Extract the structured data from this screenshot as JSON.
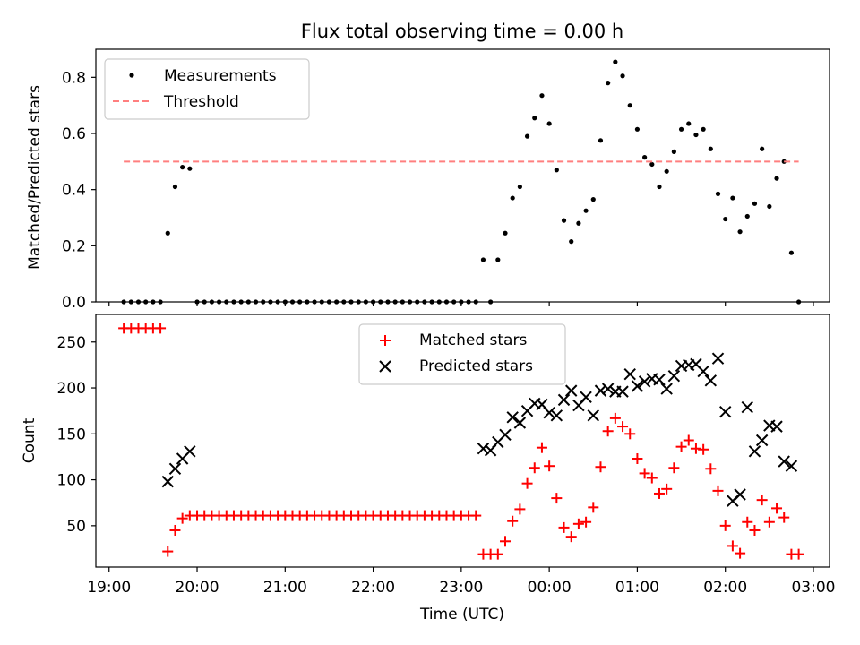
{
  "chart_data": [
    {
      "type": "scatter",
      "title": "Flux total observing time = 0.00 h",
      "xlabel": "",
      "ylabel": "Matched/Predicted stars",
      "xlim": [
        "18:51",
        "03:11"
      ],
      "ylim": [
        0,
        0.9
      ],
      "x_ticks": [
        "19:00",
        "20:00",
        "21:00",
        "22:00",
        "23:00",
        "00:00",
        "01:00",
        "02:00",
        "03:00"
      ],
      "y_ticks": [
        "0.0",
        "0.2",
        "0.4",
        "0.6",
        "0.8"
      ],
      "legend_position": "top-left",
      "grid": false,
      "series": [
        {
          "name": "Measurements",
          "marker": "dot",
          "color": "#000000",
          "points": [
            [
              "19:10",
              0
            ],
            [
              "19:15",
              0
            ],
            [
              "19:20",
              0
            ],
            [
              "19:25",
              0
            ],
            [
              "19:30",
              0
            ],
            [
              "19:35",
              0
            ],
            [
              "19:40",
              0.245
            ],
            [
              "19:45",
              0.41
            ],
            [
              "19:50",
              0.48
            ],
            [
              "19:55",
              0.475
            ],
            [
              "20:00",
              0
            ],
            [
              "20:05",
              0
            ],
            [
              "20:10",
              0
            ],
            [
              "20:15",
              0
            ],
            [
              "20:20",
              0
            ],
            [
              "20:25",
              0
            ],
            [
              "20:30",
              0
            ],
            [
              "20:35",
              0
            ],
            [
              "20:40",
              0
            ],
            [
              "20:45",
              0
            ],
            [
              "20:50",
              0
            ],
            [
              "20:55",
              0
            ],
            [
              "21:00",
              0
            ],
            [
              "21:05",
              0
            ],
            [
              "21:10",
              0
            ],
            [
              "21:15",
              0
            ],
            [
              "21:20",
              0
            ],
            [
              "21:25",
              0
            ],
            [
              "21:30",
              0
            ],
            [
              "21:35",
              0
            ],
            [
              "21:40",
              0
            ],
            [
              "21:45",
              0
            ],
            [
              "21:50",
              0
            ],
            [
              "21:55",
              0
            ],
            [
              "22:00",
              0
            ],
            [
              "22:05",
              0
            ],
            [
              "22:10",
              0
            ],
            [
              "22:15",
              0
            ],
            [
              "22:20",
              0
            ],
            [
              "22:25",
              0
            ],
            [
              "22:30",
              0
            ],
            [
              "22:35",
              0
            ],
            [
              "22:40",
              0
            ],
            [
              "22:45",
              0
            ],
            [
              "22:50",
              0
            ],
            [
              "22:55",
              0
            ],
            [
              "23:00",
              0
            ],
            [
              "23:05",
              0
            ],
            [
              "23:10",
              0
            ],
            [
              "23:15",
              0.15
            ],
            [
              "23:20",
              0
            ],
            [
              "23:25",
              0.15
            ],
            [
              "23:30",
              0.245
            ],
            [
              "23:35",
              0.37
            ],
            [
              "23:40",
              0.41
            ],
            [
              "23:45",
              0.59
            ],
            [
              "23:50",
              0.655
            ],
            [
              "23:55",
              0.735
            ],
            [
              "00:00",
              0.635
            ],
            [
              "00:05",
              0.47
            ],
            [
              "00:10",
              0.29
            ],
            [
              "00:15",
              0.215
            ],
            [
              "00:20",
              0.28
            ],
            [
              "00:25",
              0.325
            ],
            [
              "00:30",
              0.365
            ],
            [
              "00:35",
              0.575
            ],
            [
              "00:40",
              0.78
            ],
            [
              "00:45",
              0.855
            ],
            [
              "00:50",
              0.805
            ],
            [
              "00:55",
              0.7
            ],
            [
              "01:00",
              0.615
            ],
            [
              "01:05",
              0.515
            ],
            [
              "01:10",
              0.49
            ],
            [
              "01:15",
              0.41
            ],
            [
              "01:20",
              0.465
            ],
            [
              "01:25",
              0.535
            ],
            [
              "01:30",
              0.615
            ],
            [
              "01:35",
              0.635
            ],
            [
              "01:40",
              0.595
            ],
            [
              "01:45",
              0.615
            ],
            [
              "01:50",
              0.545
            ],
            [
              "01:55",
              0.385
            ],
            [
              "02:00",
              0.295
            ],
            [
              "02:05",
              0.37
            ],
            [
              "02:10",
              0.25
            ],
            [
              "02:15",
              0.305
            ],
            [
              "02:20",
              0.35
            ],
            [
              "02:25",
              0.545
            ],
            [
              "02:30",
              0.34
            ],
            [
              "02:35",
              0.44
            ],
            [
              "02:40",
              0.5
            ],
            [
              "02:45",
              0.175
            ],
            [
              "02:50",
              0
            ]
          ]
        },
        {
          "name": "Threshold",
          "style": "dashed-line",
          "color": "#ff7f7f",
          "x": [
            "19:10",
            "02:50"
          ],
          "y": [
            0.5,
            0.5
          ]
        }
      ]
    },
    {
      "type": "scatter",
      "title": "",
      "xlabel": "Time (UTC)",
      "ylabel": "Count",
      "xlim": [
        "18:51",
        "03:11"
      ],
      "ylim": [
        5,
        280
      ],
      "x_ticks": [
        "19:00",
        "20:00",
        "21:00",
        "22:00",
        "23:00",
        "00:00",
        "01:00",
        "02:00",
        "03:00"
      ],
      "y_ticks": [
        "50",
        "100",
        "150",
        "200",
        "250"
      ],
      "legend_position": "upper center",
      "grid": false,
      "series": [
        {
          "name": "Matched stars",
          "marker": "plus",
          "color": "#ff0000",
          "points": [
            [
              "19:10",
              265
            ],
            [
              "19:15",
              265
            ],
            [
              "19:20",
              265
            ],
            [
              "19:25",
              265
            ],
            [
              "19:30",
              265
            ],
            [
              "19:35",
              265
            ],
            [
              "19:40",
              22
            ],
            [
              "19:45",
              45
            ],
            [
              "19:50",
              58
            ],
            [
              "19:55",
              61
            ],
            [
              "20:00",
              61
            ],
            [
              "20:05",
              61
            ],
            [
              "20:10",
              61
            ],
            [
              "20:15",
              61
            ],
            [
              "20:20",
              61
            ],
            [
              "20:25",
              61
            ],
            [
              "20:30",
              61
            ],
            [
              "20:35",
              61
            ],
            [
              "20:40",
              61
            ],
            [
              "20:45",
              61
            ],
            [
              "20:50",
              61
            ],
            [
              "20:55",
              61
            ],
            [
              "21:00",
              61
            ],
            [
              "21:05",
              61
            ],
            [
              "21:10",
              61
            ],
            [
              "21:15",
              61
            ],
            [
              "21:20",
              61
            ],
            [
              "21:25",
              61
            ],
            [
              "21:30",
              61
            ],
            [
              "21:35",
              61
            ],
            [
              "21:40",
              61
            ],
            [
              "21:45",
              61
            ],
            [
              "21:50",
              61
            ],
            [
              "21:55",
              61
            ],
            [
              "22:00",
              61
            ],
            [
              "22:05",
              61
            ],
            [
              "22:10",
              61
            ],
            [
              "22:15",
              61
            ],
            [
              "22:20",
              61
            ],
            [
              "22:25",
              61
            ],
            [
              "22:30",
              61
            ],
            [
              "22:35",
              61
            ],
            [
              "22:40",
              61
            ],
            [
              "22:45",
              61
            ],
            [
              "22:50",
              61
            ],
            [
              "22:55",
              61
            ],
            [
              "23:00",
              61
            ],
            [
              "23:05",
              61
            ],
            [
              "23:10",
              61
            ],
            [
              "23:15",
              19
            ],
            [
              "23:20",
              19
            ],
            [
              "23:25",
              19
            ],
            [
              "23:30",
              33
            ],
            [
              "23:35",
              55
            ],
            [
              "23:40",
              68
            ],
            [
              "23:45",
              96
            ],
            [
              "23:50",
              113
            ],
            [
              "23:55",
              135
            ],
            [
              "00:00",
              115
            ],
            [
              "00:05",
              80
            ],
            [
              "00:10",
              48
            ],
            [
              "00:15",
              38
            ],
            [
              "00:20",
              52
            ],
            [
              "00:25",
              54
            ],
            [
              "00:30",
              70
            ],
            [
              "00:35",
              114
            ],
            [
              "00:40",
              153
            ],
            [
              "00:45",
              167
            ],
            [
              "00:50",
              158
            ],
            [
              "00:55",
              150
            ],
            [
              "01:00",
              123
            ],
            [
              "01:05",
              107
            ],
            [
              "01:10",
              102
            ],
            [
              "01:15",
              85
            ],
            [
              "01:20",
              90
            ],
            [
              "01:25",
              113
            ],
            [
              "01:30",
              136
            ],
            [
              "01:35",
              143
            ],
            [
              "01:40",
              134
            ],
            [
              "01:45",
              133
            ],
            [
              "01:50",
              112
            ],
            [
              "01:55",
              88
            ],
            [
              "02:00",
              50
            ],
            [
              "02:05",
              28
            ],
            [
              "02:10",
              20
            ],
            [
              "02:15",
              54
            ],
            [
              "02:20",
              45
            ],
            [
              "02:25",
              78
            ],
            [
              "02:30",
              54
            ],
            [
              "02:35",
              69
            ],
            [
              "02:40",
              59
            ],
            [
              "02:45",
              19
            ],
            [
              "02:50",
              19
            ]
          ]
        },
        {
          "name": "Predicted stars",
          "marker": "x",
          "color": "#000000",
          "points": [
            [
              "19:40",
              98
            ],
            [
              "19:45",
              112
            ],
            [
              "19:50",
              123
            ],
            [
              "19:55",
              131
            ],
            [
              "23:15",
              134
            ],
            [
              "23:20",
              132
            ],
            [
              "23:25",
              141
            ],
            [
              "23:30",
              149
            ],
            [
              "23:35",
              168
            ],
            [
              "23:40",
              162
            ],
            [
              "23:45",
              175
            ],
            [
              "23:50",
              183
            ],
            [
              "23:55",
              182
            ],
            [
              "00:00",
              173
            ],
            [
              "00:05",
              170
            ],
            [
              "00:10",
              187
            ],
            [
              "00:15",
              197
            ],
            [
              "00:20",
              181
            ],
            [
              "00:25",
              190
            ],
            [
              "00:30",
              170
            ],
            [
              "00:35",
              197
            ],
            [
              "00:40",
              199
            ],
            [
              "00:45",
              196
            ],
            [
              "00:50",
              196
            ],
            [
              "00:55",
              215
            ],
            [
              "01:00",
              202
            ],
            [
              "01:05",
              207
            ],
            [
              "01:10",
              210
            ],
            [
              "01:15",
              209
            ],
            [
              "01:20",
              199
            ],
            [
              "01:25",
              213
            ],
            [
              "01:30",
              224
            ],
            [
              "01:35",
              225
            ],
            [
              "01:40",
              226
            ],
            [
              "01:45",
              218
            ],
            [
              "01:50",
              208
            ],
            [
              "01:55",
              232
            ],
            [
              "02:00",
              174
            ],
            [
              "02:05",
              77
            ],
            [
              "02:10",
              84
            ],
            [
              "02:15",
              179
            ],
            [
              "02:20",
              131
            ],
            [
              "02:25",
              143
            ],
            [
              "02:30",
              159
            ],
            [
              "02:35",
              158
            ],
            [
              "02:40",
              120
            ],
            [
              "02:45",
              115
            ]
          ]
        }
      ]
    }
  ]
}
